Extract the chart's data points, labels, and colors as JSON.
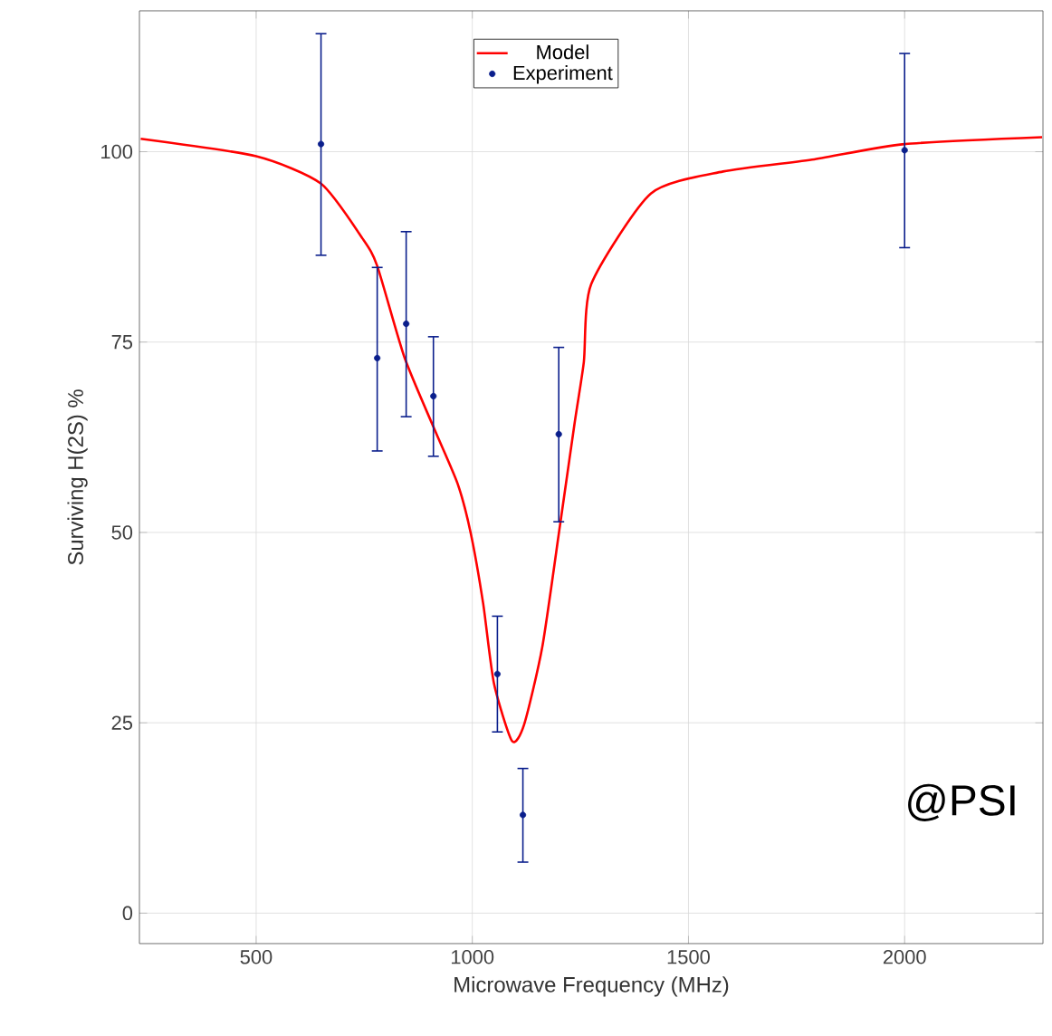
{
  "chart_data": {
    "type": "line",
    "xlabel": "Microwave Frequency (MHz)",
    "ylabel": "Surviving H(2S) %",
    "xlim": [
      230,
      2320
    ],
    "ylim": [
      -4,
      118.5
    ],
    "xticks": [
      500,
      1000,
      1500,
      2000
    ],
    "yticks": [
      0,
      25,
      50,
      75,
      100
    ],
    "grid": true,
    "legend": "top",
    "series": [
      {
        "name": "Model",
        "color": "#ff0000",
        "marker": "none",
        "line_style": "solid",
        "x": [
          233,
          500,
          650,
          746,
          780,
          843,
          912,
          966,
          996,
          1025,
          1050,
          1092,
          1120,
          1162,
          1203,
          1237,
          1258,
          1275,
          1413,
          1580,
          1791,
          2000,
          2318
        ],
        "values": [
          101.7,
          99.4,
          95.8,
          88.6,
          85,
          73,
          63.6,
          56.4,
          50,
          40.7,
          30.2,
          22.6,
          24.8,
          35,
          51,
          64.5,
          72.4,
          82.6,
          94.5,
          97.4,
          99,
          101,
          101.9
        ]
      },
      {
        "name": "Experiment",
        "type": "scatter",
        "color": "#0a1e8c",
        "marker": "circle",
        "x": [
          650,
          780,
          847,
          910,
          1058,
          1117,
          1200,
          2000
        ],
        "values": [
          101,
          72.9,
          77.4,
          67.9,
          31.4,
          12.9,
          62.9,
          100.2
        ],
        "errors": [
          [
            86.4,
            115.5
          ],
          [
            60.7,
            84.8
          ],
          [
            65.2,
            89.5
          ],
          [
            60,
            75.7
          ],
          [
            23.8,
            39
          ],
          [
            6.7,
            19
          ],
          [
            51.4,
            74.3
          ],
          [
            87.4,
            112.9
          ]
        ]
      }
    ],
    "annotations": [
      "@PSI"
    ]
  }
}
